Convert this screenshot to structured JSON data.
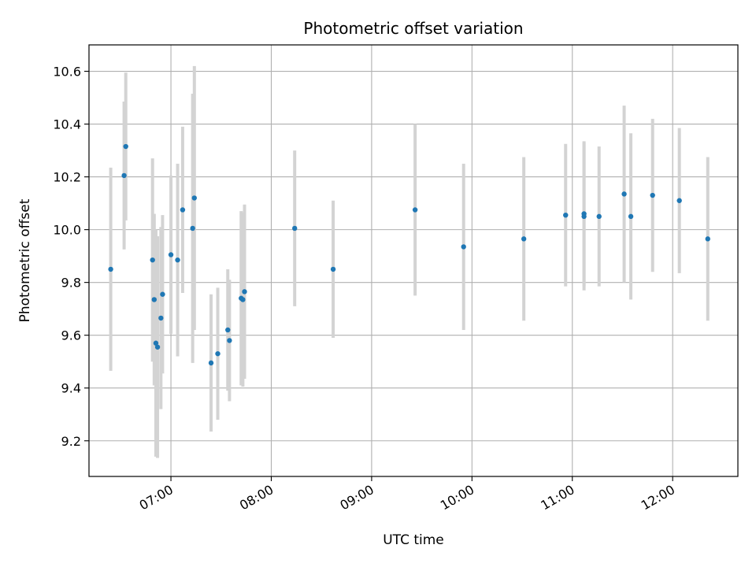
{
  "chart_data": {
    "type": "scatter",
    "title": "Photometric offset variation",
    "xlabel": "UTC time",
    "ylabel": "Photometric offset",
    "grid": true,
    "xlim": [
      "06:11",
      "12:39"
    ],
    "ylim": [
      9.065,
      10.7
    ],
    "x_ticks": [
      "07:00",
      "08:00",
      "09:00",
      "10:00",
      "11:00",
      "12:00"
    ],
    "y_ticks": [
      9.2,
      9.4,
      9.6,
      9.8,
      10.0,
      10.2,
      10.4,
      10.6
    ],
    "colors": {
      "point": "#1f77b4",
      "errorbar": "#d3d3d3",
      "grid": "#b0b0b0"
    },
    "points": [
      {
        "x": "06:24",
        "y": 9.85,
        "yerr": 0.385
      },
      {
        "x": "06:32",
        "y": 10.205,
        "yerr": 0.28
      },
      {
        "x": "06:33",
        "y": 10.315,
        "yerr": 0.28
      },
      {
        "x": "06:49",
        "y": 9.885,
        "yerr": 0.385
      },
      {
        "x": "06:50",
        "y": 9.735,
        "yerr": 0.325
      },
      {
        "x": "06:51",
        "y": 9.57,
        "yerr": 0.43
      },
      {
        "x": "06:52",
        "y": 9.555,
        "yerr": 0.42
      },
      {
        "x": "06:54",
        "y": 9.665,
        "yerr": 0.345
      },
      {
        "x": "06:55",
        "y": 9.755,
        "yerr": 0.3
      },
      {
        "x": "07:00",
        "y": 9.905,
        "yerr": 0.3
      },
      {
        "x": "07:04",
        "y": 9.885,
        "yerr": 0.365
      },
      {
        "x": "07:07",
        "y": 10.075,
        "yerr": 0.315
      },
      {
        "x": "07:13",
        "y": 10.005,
        "yerr": 0.51
      },
      {
        "x": "07:14",
        "y": 10.12,
        "yerr": 0.5
      },
      {
        "x": "07:24",
        "y": 9.495,
        "yerr": 0.26
      },
      {
        "x": "07:28",
        "y": 9.53,
        "yerr": 0.25
      },
      {
        "x": "07:34",
        "y": 9.62,
        "yerr": 0.23
      },
      {
        "x": "07:35",
        "y": 9.58,
        "yerr": 0.23
      },
      {
        "x": "07:42",
        "y": 9.74,
        "yerr": 0.33
      },
      {
        "x": "07:43",
        "y": 9.735,
        "yerr": 0.33
      },
      {
        "x": "07:44",
        "y": 9.765,
        "yerr": 0.33
      },
      {
        "x": "08:14",
        "y": 10.005,
        "yerr": 0.295
      },
      {
        "x": "08:37",
        "y": 9.85,
        "yerr": 0.26
      },
      {
        "x": "09:26",
        "y": 10.075,
        "yerr": 0.325
      },
      {
        "x": "09:55",
        "y": 9.935,
        "yerr": 0.315
      },
      {
        "x": "10:31",
        "y": 9.965,
        "yerr": 0.31
      },
      {
        "x": "10:56",
        "y": 10.055,
        "yerr": 0.27
      },
      {
        "x": "11:07",
        "y": 10.06,
        "yerr": 0.275
      },
      {
        "x": "11:07",
        "y": 10.05,
        "yerr": 0.28
      },
      {
        "x": "11:16",
        "y": 10.05,
        "yerr": 0.265
      },
      {
        "x": "11:31",
        "y": 10.135,
        "yerr": 0.335
      },
      {
        "x": "11:35",
        "y": 10.05,
        "yerr": 0.315
      },
      {
        "x": "11:48",
        "y": 10.13,
        "yerr": 0.29
      },
      {
        "x": "12:04",
        "y": 10.11,
        "yerr": 0.275
      },
      {
        "x": "12:21",
        "y": 9.965,
        "yerr": 0.31
      }
    ]
  }
}
